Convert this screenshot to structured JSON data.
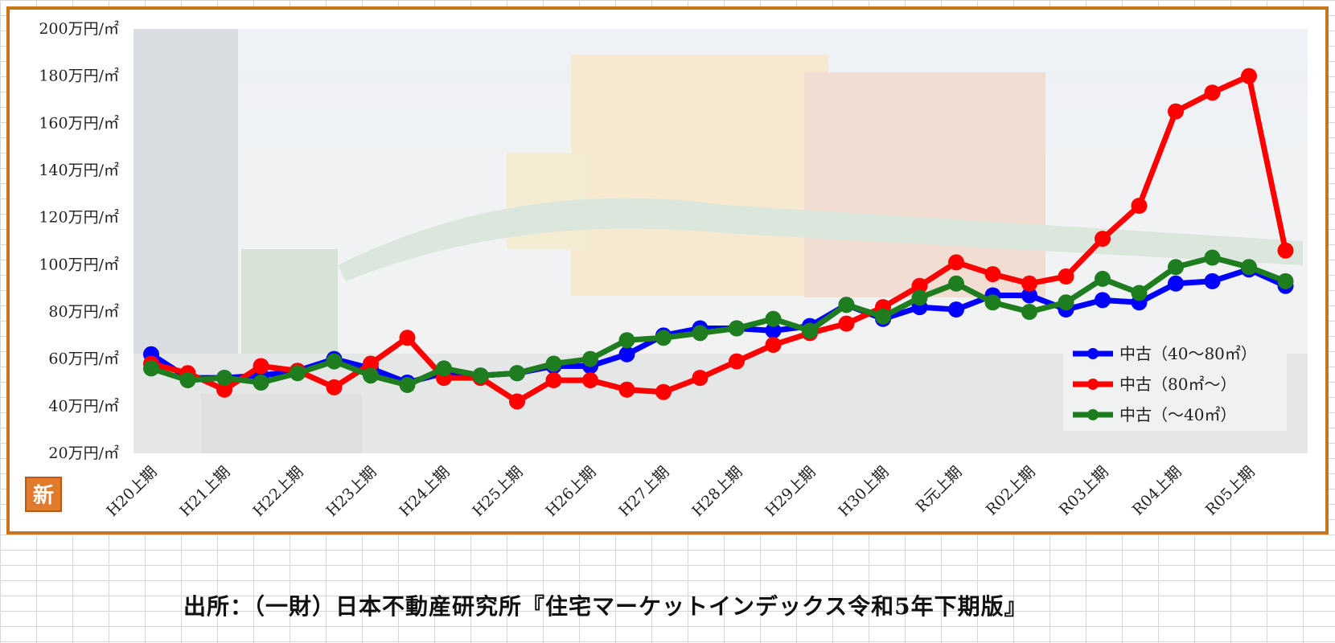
{
  "source_note": "出所：（一財）日本不動産研究所『住宅マーケットインデックス令和5年下期版』",
  "badge": {
    "label": "新",
    "color": "#e07a2e"
  },
  "colors": {
    "frame": "#c8751c"
  },
  "chart_data": {
    "type": "line",
    "title": "",
    "xlabel": "",
    "ylabel": "",
    "ylim": [
      20,
      200
    ],
    "y_ticks": [
      20,
      40,
      60,
      80,
      100,
      120,
      140,
      160,
      180,
      200
    ],
    "y_tick_unit": "万円/㎡",
    "grid": false,
    "legend_position": "bottom-right",
    "x_periods": 32,
    "x_labels": [
      "H20上期",
      "H21上期",
      "H22上期",
      "H23上期",
      "H24上期",
      "H25上期",
      "H26上期",
      "H27上期",
      "H28上期",
      "H29上期",
      "H30上期",
      "R元上期",
      "R02上期",
      "R03上期",
      "R04上期",
      "R05上期"
    ],
    "series": [
      {
        "name": "中古（40～80㎡）",
        "color": "#0000ff",
        "values": [
          62,
          52,
          52,
          53,
          55,
          60,
          56,
          50,
          54,
          53,
          54,
          57,
          57,
          62,
          70,
          73,
          73,
          72,
          74,
          83,
          77,
          82,
          81,
          87,
          87,
          81,
          85,
          84,
          92,
          93,
          98,
          91
        ]
      },
      {
        "name": "中古（80㎡～）",
        "color": "#ff0000",
        "values": [
          58,
          54,
          47,
          57,
          55,
          48,
          58,
          69,
          52,
          52,
          42,
          51,
          51,
          47,
          46,
          52,
          59,
          66,
          71,
          75,
          82,
          91,
          101,
          96,
          92,
          95,
          111,
          125,
          165,
          173,
          180,
          106
        ]
      },
      {
        "name": "中古（～40㎡）",
        "color": "#1e7d1e",
        "values": [
          56,
          51,
          52,
          50,
          54,
          59,
          53,
          49,
          56,
          53,
          54,
          58,
          60,
          68,
          69,
          71,
          73,
          77,
          72,
          83,
          78,
          86,
          92,
          84,
          80,
          84,
          94,
          88,
          99,
          103,
          99,
          93
        ]
      }
    ]
  }
}
